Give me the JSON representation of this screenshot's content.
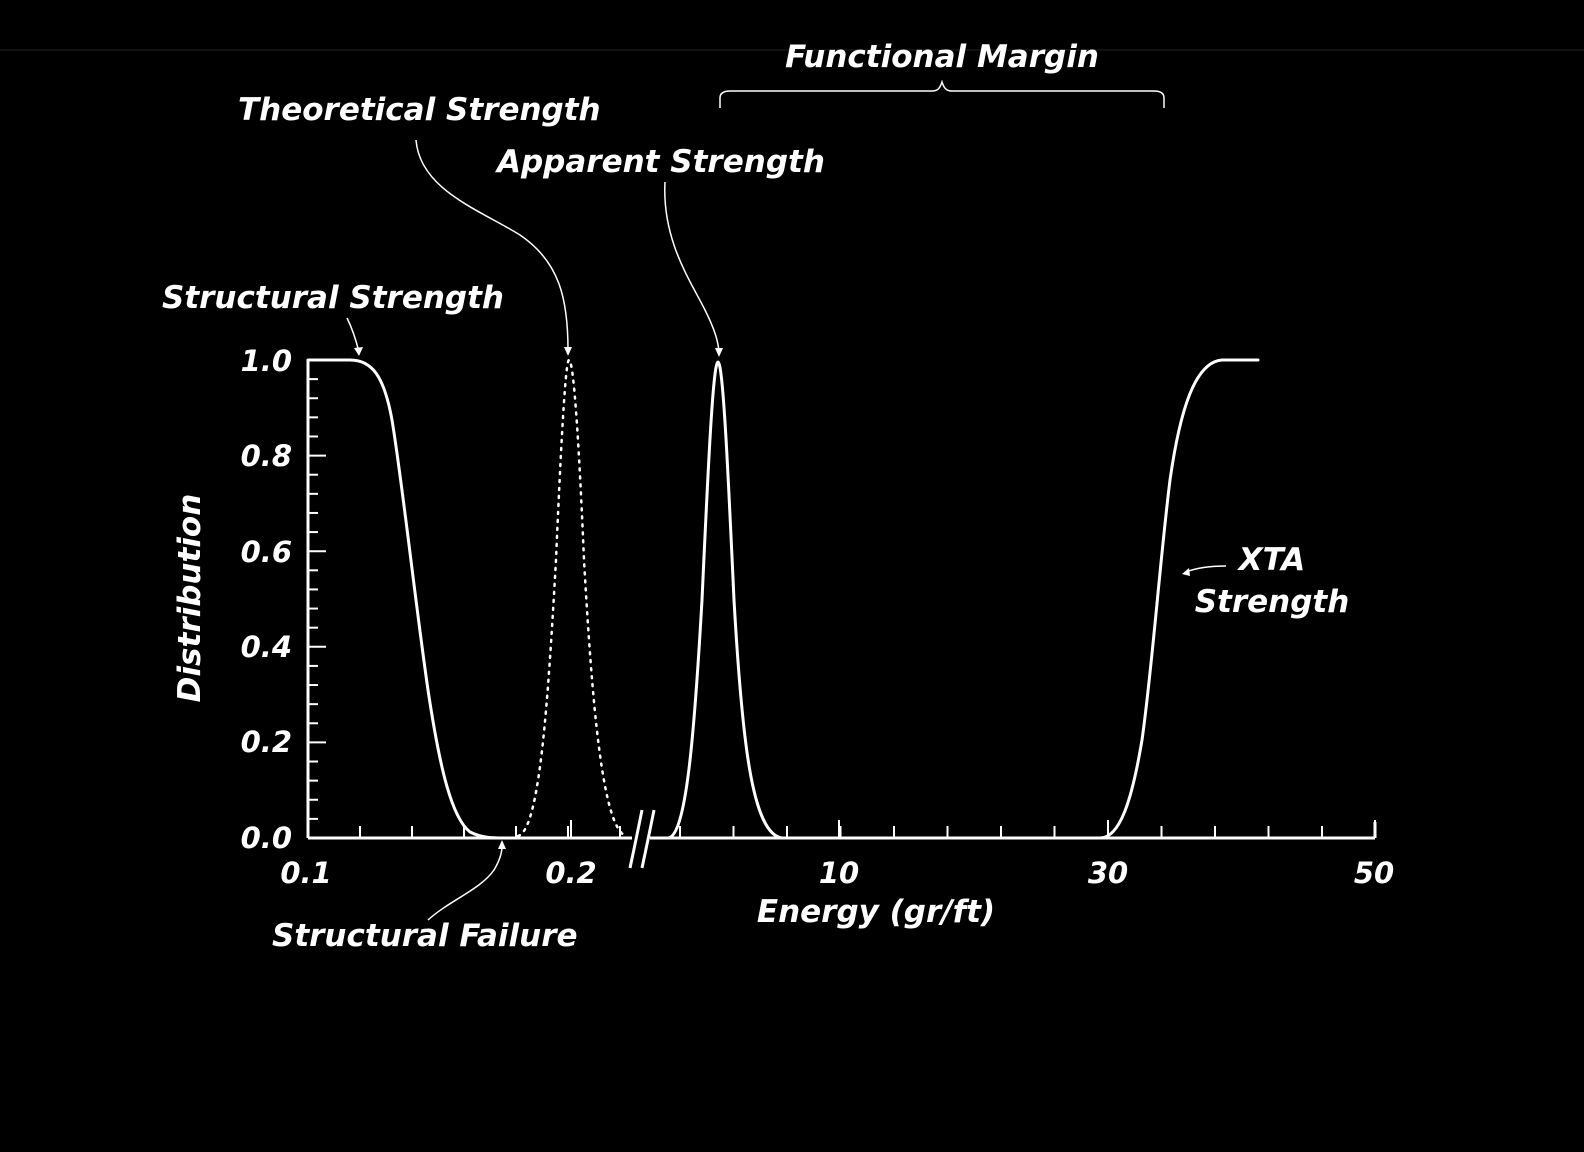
{
  "chart_data": {
    "type": "line",
    "title": "",
    "xlabel": "Energy (gr/ft)",
    "ylabel": "Distribution",
    "ylim": [
      0,
      1.0
    ],
    "x_tick_labels": [
      "0.1",
      "0.2",
      "10",
      "30",
      "50"
    ],
    "y_tick_labels": [
      "0.0",
      "0.2",
      "0.4",
      "0.6",
      "0.8",
      "1.0"
    ],
    "x_axis_break": true,
    "grid": false,
    "colors": {
      "background": "#000000",
      "foreground": "#ffffff"
    },
    "series": [
      {
        "name": "Structural Strength",
        "style": "solid",
        "shape": "descending-sigmoid",
        "points": [
          [
            0.1,
            1.0
          ],
          [
            0.12,
            0.98
          ],
          [
            0.14,
            0.8
          ],
          [
            0.16,
            0.1
          ],
          [
            0.18,
            0.0
          ]
        ]
      },
      {
        "name": "Theoretical Strength",
        "style": "dotted",
        "shape": "peak",
        "points": [
          [
            0.16,
            0.0
          ],
          [
            0.2,
            1.0
          ],
          [
            0.235,
            0.0
          ]
        ]
      },
      {
        "name": "Apparent Strength",
        "style": "solid",
        "shape": "peak",
        "points": [
          [
            2.5,
            0.0
          ],
          [
            5.5,
            1.0
          ],
          [
            8.5,
            0.0
          ]
        ]
      },
      {
        "name": "XTA Strength",
        "style": "solid",
        "shape": "ascending-sigmoid",
        "points": [
          [
            27,
            0.0
          ],
          [
            30,
            0.02
          ],
          [
            34,
            0.5
          ],
          [
            38,
            0.98
          ],
          [
            42,
            1.0
          ]
        ]
      }
    ],
    "annotations": [
      {
        "id": "structural_strength",
        "text": "Structural Strength"
      },
      {
        "id": "theoretical_strength",
        "text": "Theoretical Strength"
      },
      {
        "id": "apparent_strength",
        "text": "Apparent Strength"
      },
      {
        "id": "functional_margin",
        "text": "Functional Margin"
      },
      {
        "id": "xta_strength_1",
        "text": "XTA"
      },
      {
        "id": "xta_strength_2",
        "text": "Strength"
      },
      {
        "id": "structural_failure",
        "text": "Structural Failure"
      }
    ]
  }
}
